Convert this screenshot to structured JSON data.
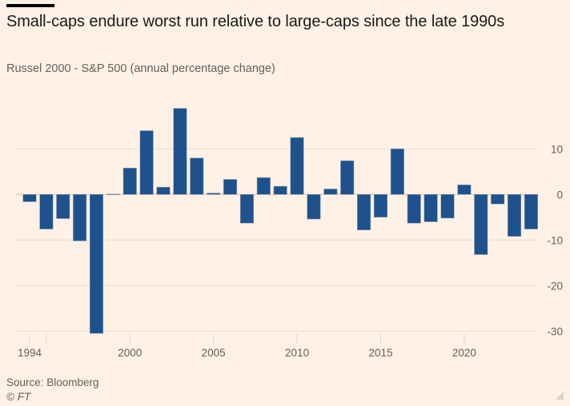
{
  "header": {
    "title": "Small-caps endure worst run relative to large-caps since the late 1990s",
    "subtitle": "Russel 2000 - S&P 500 (annual percentage change)"
  },
  "footer": {
    "source": "Source: Bloomberg",
    "copyright": "© FT"
  },
  "colors": {
    "background": "#fff1e5",
    "bar": "#1f528c",
    "gridline": "#e6ddd5",
    "text": "#66605c"
  },
  "chart_data": {
    "type": "bar",
    "title": "Small-caps endure worst run relative to large-caps since the late 1990s",
    "subtitle": "Russel 2000 - S&P 500 (annual percentage change)",
    "xlabel": "",
    "ylabel": "",
    "categories": [
      1994,
      1995,
      1996,
      1997,
      1998,
      1999,
      2000,
      2001,
      2002,
      2003,
      2004,
      2005,
      2006,
      2007,
      2008,
      2009,
      2010,
      2011,
      2012,
      2013,
      2014,
      2015,
      2016,
      2017,
      2018,
      2019,
      2020,
      2021,
      2022,
      2023,
      2024
    ],
    "values": [
      -1.6,
      -7.6,
      -5.3,
      -10.2,
      -30.5,
      0.1,
      5.8,
      14.0,
      1.6,
      18.9,
      8.0,
      0.3,
      3.3,
      -6.3,
      3.7,
      1.8,
      12.5,
      -5.4,
      1.2,
      7.4,
      -7.8,
      -5.0,
      10.0,
      -6.3,
      -6.0,
      -5.2,
      2.1,
      -13.2,
      -2.1,
      -9.2,
      -7.6
    ],
    "ylim": [
      -30,
      20
    ],
    "yticks": [
      10,
      0,
      -10,
      -20,
      -30
    ],
    "xticks": [
      1994,
      1995,
      2000,
      2005,
      2010,
      2015,
      2020
    ],
    "xtick_labels": [
      "1994",
      "",
      "2000",
      "2005",
      "2010",
      "2015",
      "2020"
    ],
    "y_axis_side": "right",
    "grid": true,
    "legend": "none",
    "source": "Source: Bloomberg"
  }
}
